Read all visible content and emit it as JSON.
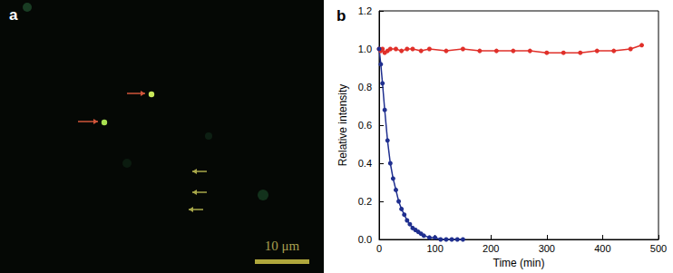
{
  "image": {
    "label": "a",
    "scale_bar": "10 μm"
  },
  "chart_data": {
    "type": "line",
    "title": "b",
    "x_label": "Time (min)",
    "y_label": "Relative intensity",
    "xlim": [
      0,
      500
    ],
    "xticks": [
      0,
      100,
      200,
      300,
      400,
      500
    ],
    "ylim": [
      0,
      1.2
    ],
    "yticks": [
      {
        "value": 0,
        "label": "0.0"
      },
      0.2,
      0.4,
      0.6,
      0.8,
      {
        "value": 1,
        "label": "1.0"
      },
      1.2
    ],
    "grid": false,
    "marker": "circle",
    "line_style": "solid",
    "series": [
      {
        "color": "#e0302a",
        "x": [
          0,
          3,
          6,
          10,
          15,
          20,
          30,
          40,
          50,
          60,
          75,
          90,
          120,
          150,
          180,
          210,
          240,
          270,
          300,
          330,
          360,
          390,
          420,
          450,
          470
        ],
        "values": [
          1.0,
          0.99,
          1.0,
          0.98,
          0.99,
          1.0,
          1.0,
          0.99,
          1.0,
          1.0,
          0.99,
          1.0,
          0.99,
          1.0,
          0.99,
          0.99,
          0.99,
          0.99,
          0.98,
          0.98,
          0.98,
          0.99,
          0.99,
          1.0,
          1.02
        ]
      },
      {
        "color": "#1f2f8f",
        "x": [
          0,
          3,
          6,
          10,
          15,
          20,
          25,
          30,
          35,
          40,
          45,
          50,
          55,
          60,
          65,
          70,
          75,
          80,
          90,
          100,
          110,
          120,
          130,
          140,
          150
        ],
        "values": [
          1.0,
          0.92,
          0.82,
          0.68,
          0.52,
          0.4,
          0.32,
          0.26,
          0.2,
          0.16,
          0.13,
          0.1,
          0.08,
          0.06,
          0.05,
          0.04,
          0.03,
          0.02,
          0.01,
          0.01,
          0,
          0,
          0,
          0,
          0
        ]
      }
    ]
  }
}
